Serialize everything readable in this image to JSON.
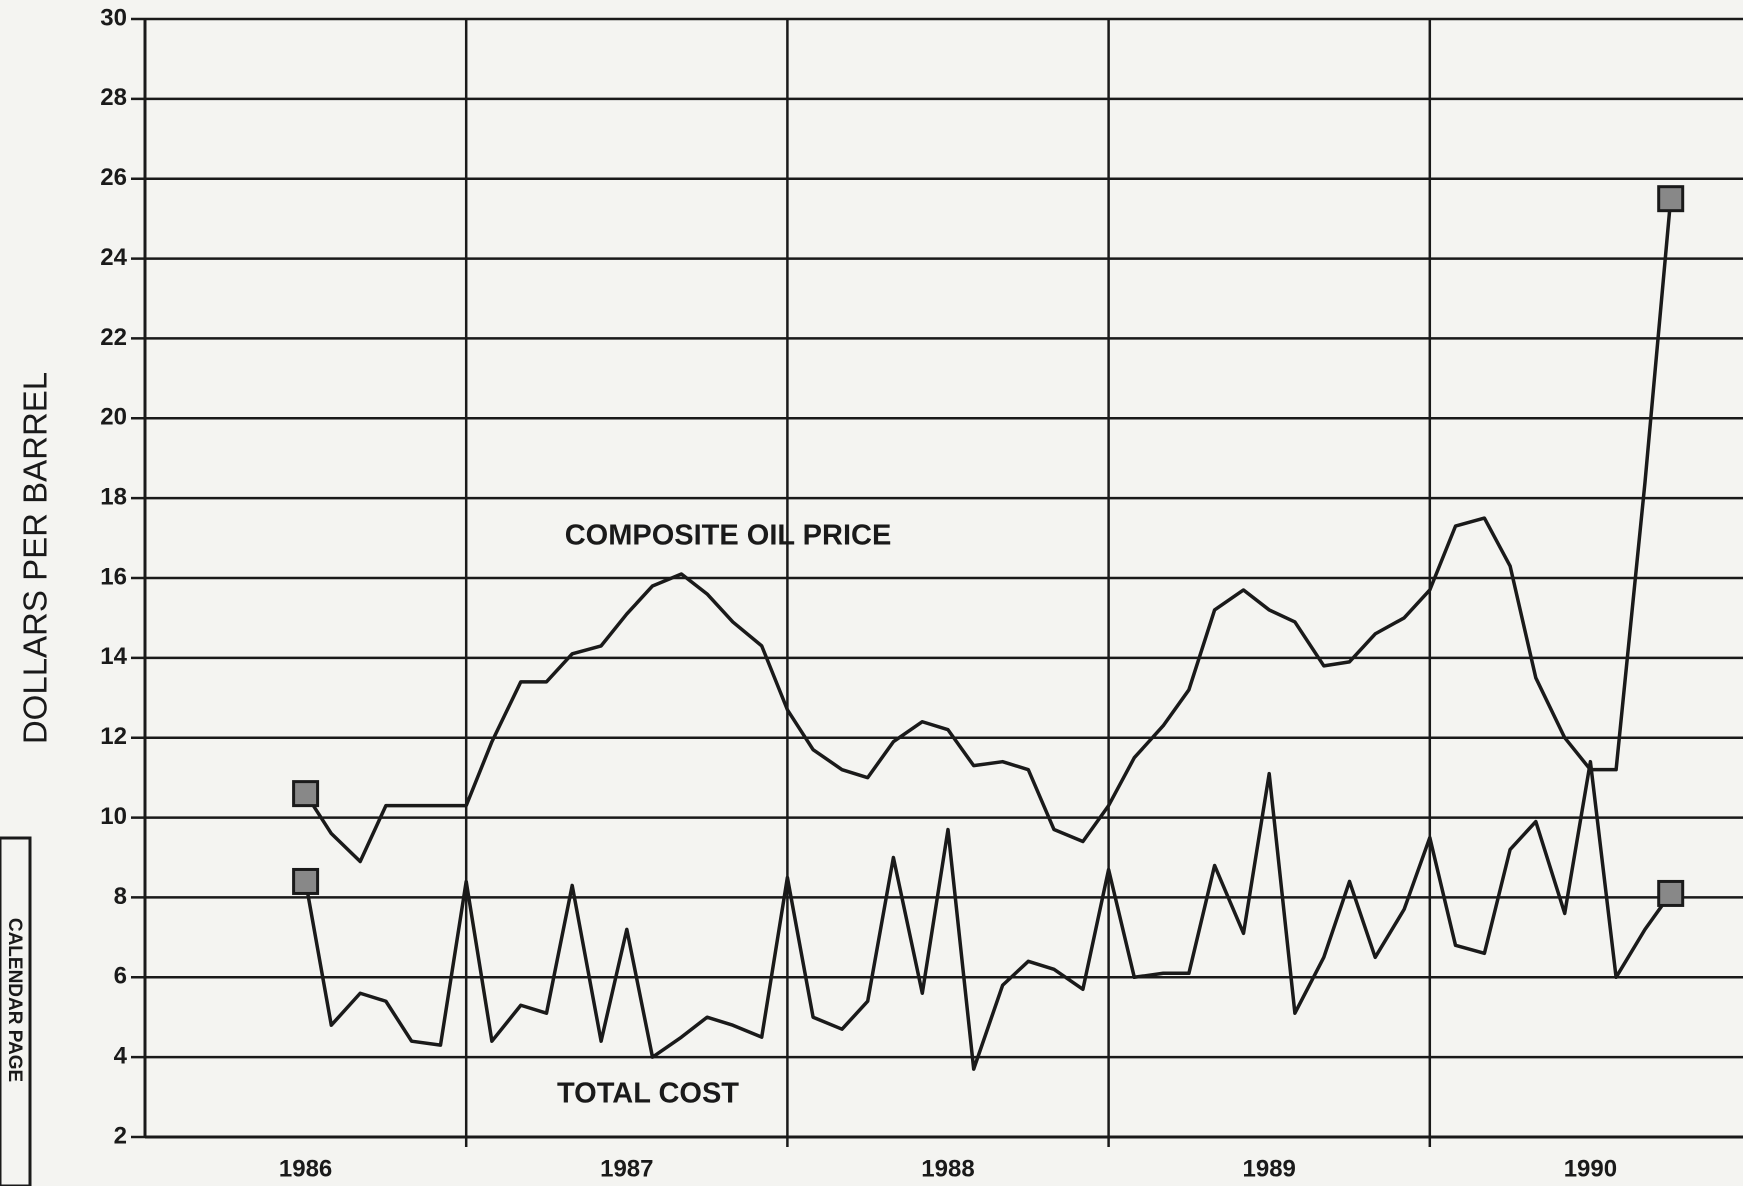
{
  "chart_data": {
    "type": "line",
    "ylabel": "DOLLARS PER BARREL",
    "stamp": "CALENDAR PAGE",
    "annotations": [
      "COMPOSITE OIL PRICE",
      "TOTAL COST"
    ],
    "x": [
      1986.5,
      1986.58,
      1986.67,
      1986.75,
      1986.83,
      1986.92,
      1987.0,
      1987.08,
      1987.17,
      1987.25,
      1987.33,
      1987.42,
      1987.5,
      1987.58,
      1987.67,
      1987.75,
      1987.83,
      1987.92,
      1988.0,
      1988.08,
      1988.17,
      1988.25,
      1988.33,
      1988.42,
      1988.5,
      1988.58,
      1988.67,
      1988.75,
      1988.83,
      1988.92,
      1989.0,
      1989.08,
      1989.17,
      1989.25,
      1989.33,
      1989.42,
      1989.5,
      1989.58,
      1989.67,
      1989.75,
      1989.83,
      1989.92,
      1990.0,
      1990.08,
      1990.17,
      1990.25,
      1990.33,
      1990.42,
      1990.5,
      1990.58,
      1990.67,
      1990.75
    ],
    "series": [
      {
        "name": "COMPOSITE OIL PRICE",
        "color": "#1a1a1a",
        "values": [
          10.6,
          9.6,
          8.9,
          10.3,
          10.3,
          10.3,
          10.3,
          11.9,
          13.4,
          13.4,
          14.1,
          14.3,
          15.1,
          15.8,
          16.1,
          15.6,
          14.9,
          14.3,
          12.7,
          11.7,
          11.2,
          11.0,
          11.9,
          12.4,
          12.2,
          11.3,
          11.4,
          11.2,
          9.7,
          9.4,
          10.3,
          11.5,
          12.3,
          13.2,
          15.2,
          15.7,
          15.2,
          14.9,
          13.8,
          13.9,
          14.6,
          15.0,
          15.7,
          17.3,
          17.5,
          16.3,
          13.5,
          12.0,
          11.2,
          11.2,
          18.4,
          25.5
        ]
      },
      {
        "name": "TOTAL COST",
        "color": "#1a1a1a",
        "values": [
          8.4,
          4.8,
          5.6,
          5.4,
          4.4,
          4.3,
          8.4,
          4.4,
          5.3,
          5.1,
          8.3,
          4.4,
          7.2,
          4.0,
          4.5,
          5.0,
          4.8,
          4.5,
          8.5,
          5.0,
          4.7,
          5.4,
          9.0,
          5.6,
          9.7,
          3.7,
          5.8,
          6.4,
          6.2,
          5.7,
          8.7,
          6.0,
          6.1,
          6.1,
          8.8,
          7.1,
          11.1,
          5.1,
          6.5,
          8.4,
          6.5,
          7.7,
          9.5,
          6.8,
          6.6,
          9.2,
          9.9,
          7.6,
          11.4,
          6.0,
          7.2,
          8.1
        ]
      }
    ],
    "xlim": [
      1986,
      1991
    ],
    "xticks": [
      {
        "value": 1986.5,
        "label": "1986"
      },
      {
        "value": 1987.5,
        "label": "1987"
      },
      {
        "value": 1988.5,
        "label": "1988"
      },
      {
        "value": 1989.5,
        "label": "1989"
      },
      {
        "value": 1990.5,
        "label": "1990"
      }
    ],
    "xgrid": [
      1987,
      1988,
      1989,
      1990
    ],
    "ylim": [
      2,
      30
    ],
    "yticks": [
      2,
      4,
      6,
      8,
      10,
      12,
      14,
      16,
      18,
      20,
      22,
      24,
      26,
      28,
      30
    ],
    "grid": true,
    "markers": "endpoints"
  }
}
